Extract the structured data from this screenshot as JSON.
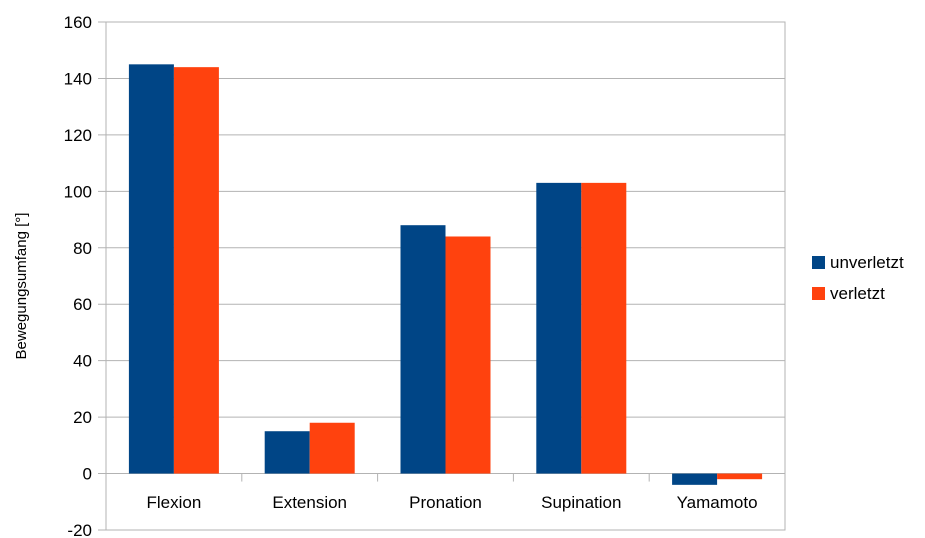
{
  "chart_data": {
    "type": "bar",
    "title": "",
    "xlabel": "",
    "ylabel": "Bewegungsumfang [°]",
    "ylim": [
      -20,
      160
    ],
    "yticks": [
      -20,
      0,
      20,
      40,
      60,
      80,
      100,
      120,
      140,
      160
    ],
    "grid": true,
    "legend_position": "right",
    "categories": [
      "Flexion",
      "Extension",
      "Pronation",
      "Supination",
      "Yamamoto"
    ],
    "series": [
      {
        "name": "unverletzt",
        "color": "#004586",
        "values": [
          145,
          15,
          88,
          103,
          -4
        ]
      },
      {
        "name": "verletzt",
        "color": "#ff420e",
        "values": [
          144,
          18,
          84,
          103,
          -2
        ]
      }
    ]
  }
}
